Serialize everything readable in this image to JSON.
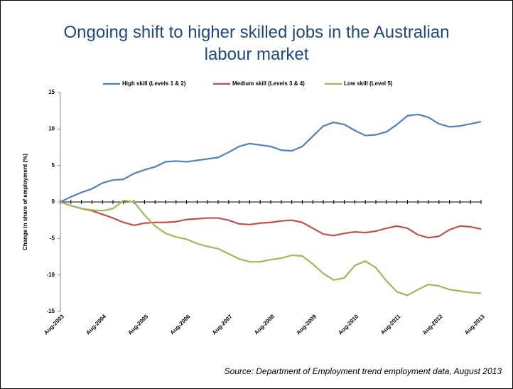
{
  "chart_data": {
    "type": "line",
    "title": "Ongoing shift to higher skilled jobs in the Australian labour market",
    "y_label": "Change in share of employment (%)",
    "source": "Source: Department of Employment trend employment data, August 2013",
    "categories": [
      "Aug-2003",
      null,
      null,
      null,
      "Aug-2004",
      null,
      null,
      null,
      "Aug-2005",
      null,
      null,
      null,
      "Aug-2006",
      null,
      null,
      null,
      "Aug-2007",
      null,
      null,
      null,
      "Aug-2008",
      null,
      null,
      null,
      "Aug-2009",
      null,
      null,
      null,
      "Aug-2010",
      null,
      null,
      null,
      "Aug-2011",
      null,
      null,
      null,
      "Aug-2012",
      null,
      null,
      null,
      "Aug-2013"
    ],
    "series": [
      {
        "name": "High skill (Levels 1 & 2)",
        "color": "#4f81bd",
        "values": [
          0,
          0.7,
          1.3,
          1.8,
          2.6,
          3.0,
          3.1,
          3.9,
          4.4,
          4.8,
          5.5,
          5.6,
          5.5,
          5.7,
          5.9,
          6.1,
          6.8,
          7.6,
          8.0,
          7.8,
          7.6,
          7.1,
          7.0,
          7.6,
          9.0,
          10.4,
          10.9,
          10.6,
          9.8,
          9.1,
          9.2,
          9.6,
          10.6,
          11.8,
          12.0,
          11.6,
          10.7,
          10.3,
          10.4,
          10.7,
          11.0
        ]
      },
      {
        "name": "Medium skill (Levels 3 & 4)",
        "color": "#c0504d",
        "values": [
          0,
          -0.5,
          -0.9,
          -1.2,
          -1.7,
          -2.2,
          -2.8,
          -3.2,
          -2.9,
          -2.8,
          -2.8,
          -2.7,
          -2.4,
          -2.3,
          -2.2,
          -2.2,
          -2.5,
          -3.0,
          -3.1,
          -2.9,
          -2.8,
          -2.6,
          -2.5,
          -2.8,
          -3.6,
          -4.4,
          -4.6,
          -4.3,
          -4.1,
          -4.2,
          -4.0,
          -3.6,
          -3.3,
          -3.6,
          -4.5,
          -4.9,
          -4.7,
          -3.8,
          -3.3,
          -3.4,
          -3.7
        ]
      },
      {
        "name": "Low skill (Level 5)",
        "color": "#9bbb59",
        "values": [
          0,
          -0.5,
          -0.9,
          -1.1,
          -1.2,
          -0.9,
          0.2,
          0.0,
          -1.8,
          -3.3,
          -4.3,
          -4.8,
          -5.1,
          -5.7,
          -6.1,
          -6.4,
          -7.1,
          -7.8,
          -8.2,
          -8.2,
          -7.9,
          -7.7,
          -7.3,
          -7.4,
          -8.5,
          -9.8,
          -10.7,
          -10.4,
          -8.7,
          -8.1,
          -9.0,
          -10.8,
          -12.3,
          -12.8,
          -12.0,
          -11.3,
          -11.5,
          -12.0,
          -12.2,
          -12.4,
          -12.5
        ]
      }
    ],
    "ylim": [
      -15,
      15
    ],
    "yticks": [
      -15,
      -10,
      -5,
      0,
      5,
      10,
      15
    ],
    "grid": false,
    "legend": "top"
  }
}
